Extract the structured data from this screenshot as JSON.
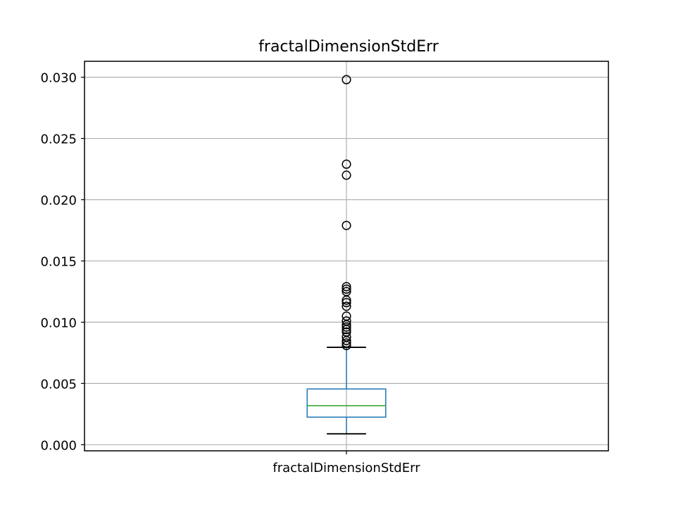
{
  "chart_data": {
    "type": "box",
    "title": "fractalDimensionStdErr",
    "xlabel": "",
    "ylabel": "",
    "categories": [
      "fractalDimensionStdErr"
    ],
    "ylim": [
      -0.0005,
      0.0313
    ],
    "yticks": [
      0.0,
      0.005,
      0.01,
      0.015,
      0.02,
      0.025,
      0.03
    ],
    "ytick_labels": [
      "0.000",
      "0.005",
      "0.010",
      "0.015",
      "0.020",
      "0.025",
      "0.030"
    ],
    "grid": true,
    "legend": "none",
    "boxes": [
      {
        "name": "fractalDimensionStdErr",
        "whisker_low": 0.00089,
        "q1": 0.00225,
        "median": 0.00319,
        "q3": 0.00455,
        "whisker_high": 0.00795,
        "outliers": [
          0.0298,
          0.0229,
          0.022,
          0.0179,
          0.0129,
          0.0127,
          0.0125,
          0.0118,
          0.0116,
          0.0113,
          0.0105,
          0.0101,
          0.0098,
          0.0096,
          0.0094,
          0.0092,
          0.0088,
          0.0085,
          0.0083,
          0.0081
        ]
      }
    ],
    "colors": {
      "box": "#1f77b4",
      "median": "#2ca02c",
      "caps": "#000000",
      "outlier_edge": "#000000",
      "grid": "#b0b0b0",
      "axes": "#000000"
    }
  }
}
